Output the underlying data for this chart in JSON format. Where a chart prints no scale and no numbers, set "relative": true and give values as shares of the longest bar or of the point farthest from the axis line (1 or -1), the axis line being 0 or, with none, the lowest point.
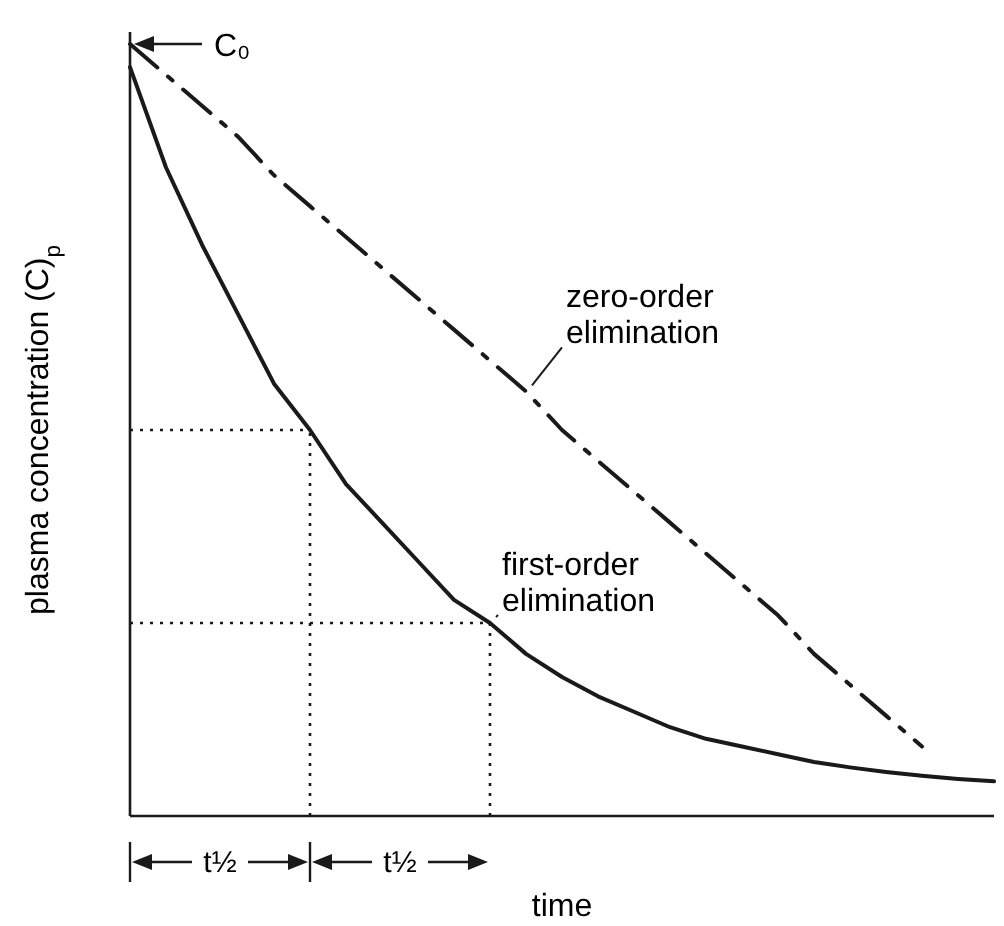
{
  "chart_data": {
    "type": "line",
    "relative": true,
    "xlabel": "time",
    "ylabel": "plasma concentration (C)$_{p}$",
    "categories": [
      null,
      null,
      null,
      null,
      null,
      null,
      null,
      null,
      null,
      null,
      null,
      null,
      null,
      null,
      null,
      null,
      null,
      null,
      null,
      null,
      null,
      null,
      null,
      null,
      null
    ],
    "series": [
      {
        "name": "first-order elimination",
        "color": "#1a1a1a",
        "line_style": "solid",
        "values": [
          0.97,
          0.84,
          0.74,
          0.65,
          0.56,
          0.5,
          0.43,
          0.38,
          0.33,
          0.28,
          0.25,
          0.21,
          0.18,
          0.155,
          0.135,
          0.115,
          0.1,
          0.09,
          0.08,
          0.07,
          0.063,
          0.057,
          0.052,
          0.048,
          0.045
        ]
      },
      {
        "name": "zero-order elimination",
        "color": "#1a1a1a",
        "line_style": "dashed",
        "values": [
          1.0,
          0.96,
          0.92,
          0.88,
          0.83,
          0.79,
          0.75,
          0.71,
          0.67,
          0.63,
          0.59,
          0.55,
          0.5,
          0.46,
          0.42,
          0.38,
          0.34,
          0.3,
          0.26,
          0.21,
          0.17,
          0.13,
          0.09,
          null,
          null
        ]
      }
    ],
    "ref_lines": [
      {
        "axis": "y",
        "value": 0.5,
        "line_style": "dotted"
      },
      {
        "axis": "y",
        "value": 0.25,
        "line_style": "dotted"
      }
    ],
    "annotations": [
      "C₀",
      "t½",
      "t½"
    ],
    "legend": false
  }
}
